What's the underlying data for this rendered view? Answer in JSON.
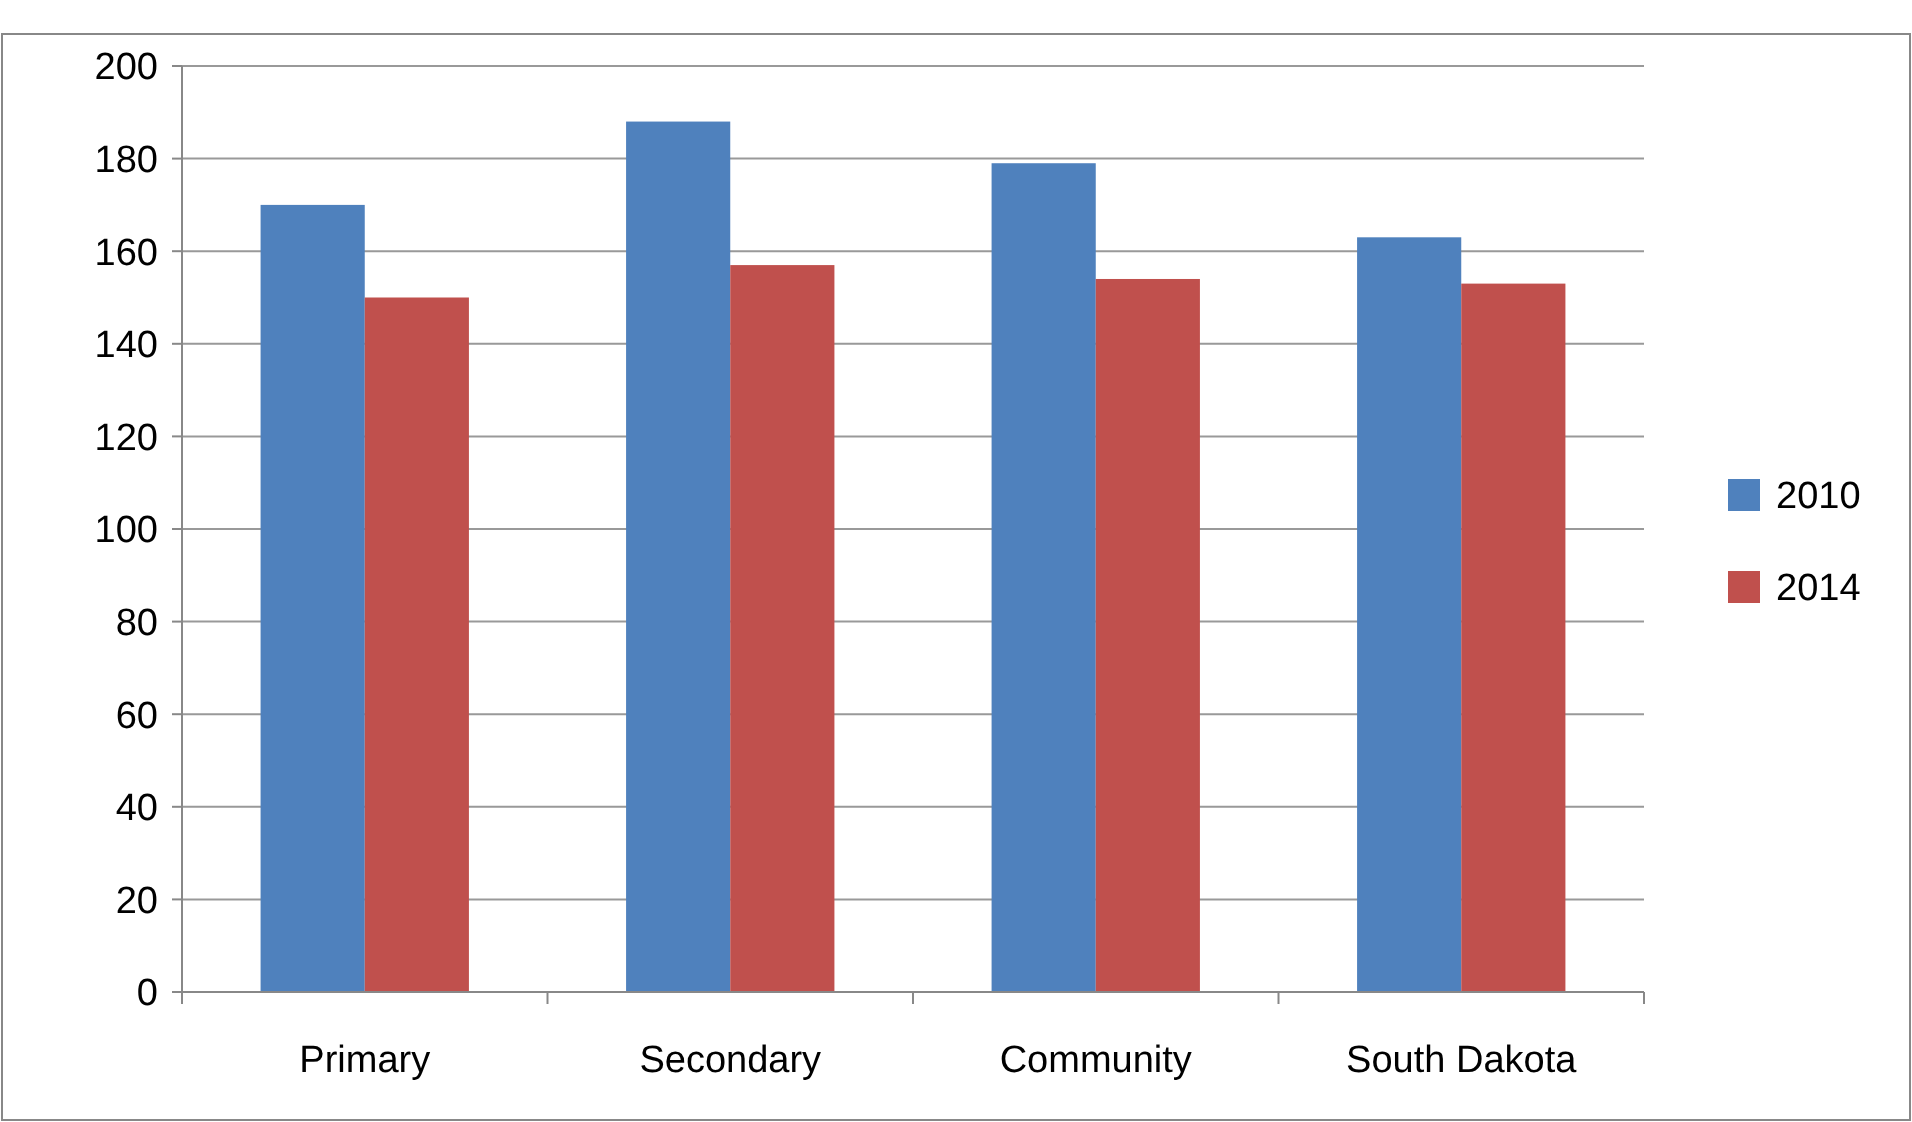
{
  "chart_data": {
    "type": "bar",
    "categories": [
      "Primary",
      "Secondary",
      "Community",
      "South Dakota"
    ],
    "series": [
      {
        "name": "2010",
        "color": "#4f81bd",
        "values": [
          170,
          188,
          179,
          163
        ]
      },
      {
        "name": "2014",
        "color": "#c0504d",
        "values": [
          150,
          157,
          154,
          153
        ]
      }
    ],
    "ylim": [
      0,
      200
    ],
    "yticks": [
      0,
      20,
      40,
      60,
      80,
      100,
      120,
      140,
      160,
      180,
      200
    ],
    "grid": "y",
    "legend": "right"
  }
}
